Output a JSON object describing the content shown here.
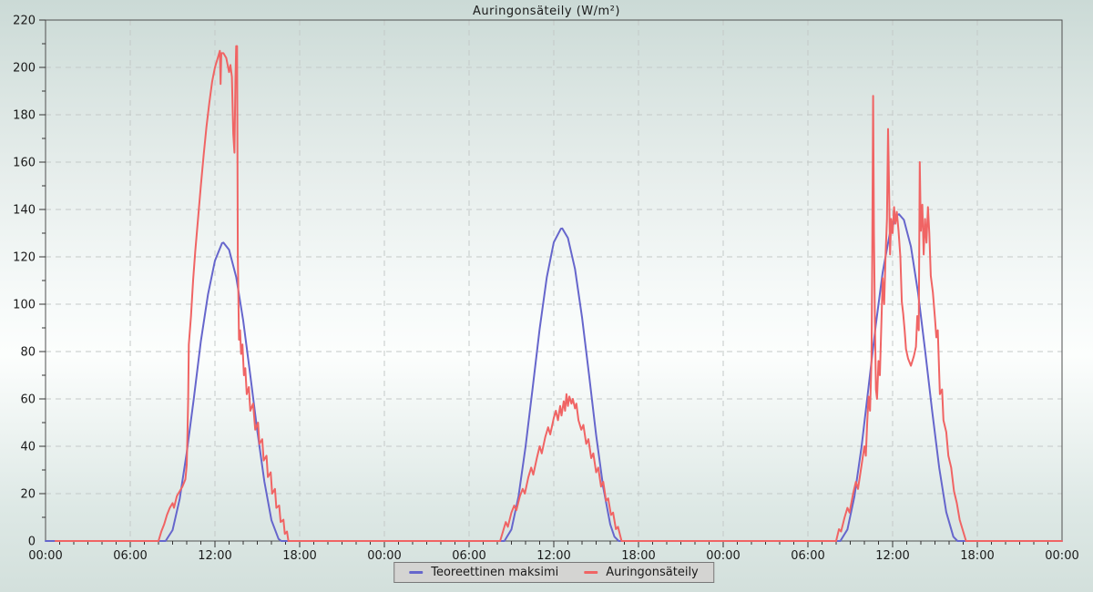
{
  "chart_data": {
    "type": "line",
    "title": "Auringonsäteily (W/m²)",
    "xlabel": "",
    "ylabel": "",
    "x_axis": {
      "unit": "time (hh:mm), 3 consecutive days",
      "min_hour": 0,
      "max_hour": 72,
      "major_tick_every_hours": 6,
      "minor_tick_every_hours": 1,
      "tick_labels": [
        "00:00",
        "06:00",
        "12:00",
        "18:00",
        "00:00",
        "06:00",
        "12:00",
        "18:00",
        "00:00",
        "06:00",
        "12:00",
        "18:00",
        "00:00"
      ]
    },
    "y_axis": {
      "unit": "W/m²",
      "min": 0,
      "max": 220,
      "major_tick_every": 20,
      "minor_tick_every": 10,
      "tick_labels": [
        "0",
        "20",
        "40",
        "60",
        "80",
        "100",
        "120",
        "140",
        "160",
        "180",
        "200",
        "220"
      ]
    },
    "grid": {
      "horizontal_every": 20,
      "vertical_every_hours": 6,
      "style": "dashed",
      "color": "#c4c9c8"
    },
    "legend": {
      "position": "bottom-center",
      "items": [
        {
          "label": "Teoreettinen maksimi",
          "color": "#6666cc"
        },
        {
          "label": "Auringonsäteily",
          "color": "#f06464"
        }
      ]
    },
    "series": [
      {
        "name": "Teoreettinen maksimi",
        "color": "#6666cc",
        "points": [
          [
            0,
            0
          ],
          [
            8.5,
            0
          ],
          [
            9,
            4.6
          ],
          [
            9.5,
            17.8
          ],
          [
            10,
            37.3
          ],
          [
            10.5,
            60.2
          ],
          [
            11,
            84.3
          ],
          [
            11.5,
            104
          ],
          [
            12,
            118.4
          ],
          [
            12.5,
            125.8
          ],
          [
            12.6,
            126
          ],
          [
            13,
            123
          ],
          [
            13.5,
            111.5
          ],
          [
            14,
            93.1
          ],
          [
            14.5,
            70
          ],
          [
            15,
            46.5
          ],
          [
            15.5,
            25
          ],
          [
            16,
            8.8
          ],
          [
            16.5,
            0.9
          ],
          [
            16.7,
            0
          ],
          [
            32.5,
            0
          ],
          [
            33,
            4.9
          ],
          [
            33.5,
            18.9
          ],
          [
            34,
            39.8
          ],
          [
            34.5,
            64.6
          ],
          [
            35,
            89.6
          ],
          [
            35.5,
            111.3
          ],
          [
            36,
            126.1
          ],
          [
            36.5,
            131.9
          ],
          [
            36.6,
            132
          ],
          [
            37,
            128
          ],
          [
            37.5,
            114.9
          ],
          [
            38,
            94.5
          ],
          [
            38.5,
            69.9
          ],
          [
            39,
            44.7
          ],
          [
            39.5,
            22.6
          ],
          [
            40,
            7
          ],
          [
            40.3,
            1.8
          ],
          [
            40.6,
            0
          ],
          [
            56.3,
            0
          ],
          [
            56.8,
            4.9
          ],
          [
            57.3,
            18.9
          ],
          [
            57.8,
            39.8
          ],
          [
            58.3,
            65.1
          ],
          [
            58.8,
            90.8
          ],
          [
            59.3,
            113.5
          ],
          [
            59.8,
            129.8
          ],
          [
            60.3,
            137.5
          ],
          [
            60.45,
            138
          ],
          [
            60.8,
            135.6
          ],
          [
            61.3,
            124.3
          ],
          [
            61.8,
            104.9
          ],
          [
            62.3,
            80.7
          ],
          [
            62.8,
            54.9
          ],
          [
            63.3,
            30.8
          ],
          [
            63.8,
            12.2
          ],
          [
            64.3,
            1.8
          ],
          [
            64.6,
            0
          ],
          [
            72,
            0
          ]
        ]
      },
      {
        "name": "Auringonsäteily",
        "color": "#f06464",
        "points": [
          [
            0.7,
            0
          ],
          [
            8,
            0
          ],
          [
            8.2,
            4
          ],
          [
            8.4,
            7
          ],
          [
            8.6,
            11
          ],
          [
            8.8,
            14
          ],
          [
            9,
            16
          ],
          [
            9.1,
            14
          ],
          [
            9.3,
            19
          ],
          [
            9.5,
            21
          ],
          [
            9.7,
            23
          ],
          [
            9.9,
            26
          ],
          [
            10,
            32
          ],
          [
            10.05,
            45
          ],
          [
            10.1,
            60
          ],
          [
            10.15,
            83
          ],
          [
            10.3,
            95
          ],
          [
            10.45,
            110
          ],
          [
            10.6,
            122
          ],
          [
            10.8,
            136
          ],
          [
            11,
            150
          ],
          [
            11.2,
            163
          ],
          [
            11.4,
            175
          ],
          [
            11.6,
            185
          ],
          [
            11.8,
            194
          ],
          [
            12,
            200
          ],
          [
            12.2,
            204
          ],
          [
            12.35,
            207
          ],
          [
            12.4,
            193
          ],
          [
            12.45,
            206
          ],
          [
            12.6,
            206
          ],
          [
            12.8,
            204
          ],
          [
            13,
            198
          ],
          [
            13.1,
            201
          ],
          [
            13.2,
            196
          ],
          [
            13.3,
            172
          ],
          [
            13.38,
            164
          ],
          [
            13.45,
            195
          ],
          [
            13.5,
            209
          ],
          [
            13.57,
            209
          ],
          [
            13.62,
            120
          ],
          [
            13.7,
            85
          ],
          [
            13.78,
            89
          ],
          [
            13.85,
            79
          ],
          [
            13.95,
            83
          ],
          [
            14.05,
            70
          ],
          [
            14.15,
            73
          ],
          [
            14.25,
            62
          ],
          [
            14.4,
            65
          ],
          [
            14.5,
            55
          ],
          [
            14.7,
            58
          ],
          [
            14.85,
            47
          ],
          [
            15.05,
            50
          ],
          [
            15.15,
            41
          ],
          [
            15.35,
            43
          ],
          [
            15.45,
            34
          ],
          [
            15.65,
            36
          ],
          [
            15.75,
            27
          ],
          [
            15.95,
            29
          ],
          [
            16.05,
            20
          ],
          [
            16.25,
            22
          ],
          [
            16.35,
            14
          ],
          [
            16.55,
            15
          ],
          [
            16.65,
            8
          ],
          [
            16.85,
            9
          ],
          [
            16.95,
            3
          ],
          [
            17.1,
            4
          ],
          [
            17.2,
            0
          ],
          [
            32.2,
            0
          ],
          [
            32.4,
            4
          ],
          [
            32.6,
            8
          ],
          [
            32.75,
            6
          ],
          [
            33,
            12
          ],
          [
            33.2,
            15
          ],
          [
            33.35,
            13
          ],
          [
            33.6,
            19
          ],
          [
            33.8,
            22
          ],
          [
            33.95,
            20
          ],
          [
            34.2,
            27
          ],
          [
            34.4,
            31
          ],
          [
            34.55,
            28
          ],
          [
            34.8,
            35
          ],
          [
            35,
            40
          ],
          [
            35.15,
            37
          ],
          [
            35.4,
            44
          ],
          [
            35.6,
            48
          ],
          [
            35.75,
            45
          ],
          [
            36,
            52
          ],
          [
            36.15,
            55
          ],
          [
            36.3,
            51
          ],
          [
            36.45,
            57
          ],
          [
            36.55,
            53
          ],
          [
            36.7,
            59
          ],
          [
            36.8,
            55
          ],
          [
            36.9,
            62
          ],
          [
            37,
            57
          ],
          [
            37.1,
            61
          ],
          [
            37.25,
            58
          ],
          [
            37.35,
            60
          ],
          [
            37.5,
            56
          ],
          [
            37.6,
            58
          ],
          [
            37.75,
            51
          ],
          [
            37.95,
            47
          ],
          [
            38.1,
            49
          ],
          [
            38.3,
            41
          ],
          [
            38.45,
            43
          ],
          [
            38.65,
            35
          ],
          [
            38.8,
            37
          ],
          [
            39,
            29
          ],
          [
            39.15,
            31
          ],
          [
            39.35,
            23
          ],
          [
            39.5,
            25
          ],
          [
            39.7,
            17
          ],
          [
            39.85,
            18
          ],
          [
            40.05,
            11
          ],
          [
            40.2,
            12
          ],
          [
            40.4,
            5
          ],
          [
            40.55,
            6
          ],
          [
            40.8,
            0
          ],
          [
            56,
            0
          ],
          [
            56.2,
            5
          ],
          [
            56.35,
            4
          ],
          [
            56.6,
            10
          ],
          [
            56.8,
            14
          ],
          [
            56.95,
            12
          ],
          [
            57.2,
            20
          ],
          [
            57.4,
            25
          ],
          [
            57.55,
            22
          ],
          [
            57.8,
            32
          ],
          [
            58,
            40
          ],
          [
            58.1,
            36
          ],
          [
            58.2,
            50
          ],
          [
            58.3,
            61
          ],
          [
            58.4,
            55
          ],
          [
            58.5,
            76
          ],
          [
            58.55,
            112
          ],
          [
            58.62,
            188
          ],
          [
            58.68,
            130
          ],
          [
            58.75,
            92
          ],
          [
            58.82,
            64
          ],
          [
            58.9,
            60
          ],
          [
            59,
            76
          ],
          [
            59.1,
            70
          ],
          [
            59.2,
            91
          ],
          [
            59.3,
            111
          ],
          [
            59.4,
            100
          ],
          [
            59.5,
            121
          ],
          [
            59.6,
            136
          ],
          [
            59.68,
            174
          ],
          [
            59.75,
            149
          ],
          [
            59.82,
            121
          ],
          [
            59.9,
            136
          ],
          [
            60,
            130
          ],
          [
            60.1,
            141
          ],
          [
            60.2,
            134
          ],
          [
            60.3,
            139
          ],
          [
            60.42,
            131
          ],
          [
            60.55,
            120
          ],
          [
            60.65,
            101
          ],
          [
            60.75,
            96
          ],
          [
            60.85,
            89
          ],
          [
            60.95,
            81
          ],
          [
            61.1,
            77
          ],
          [
            61.3,
            74
          ],
          [
            61.5,
            78
          ],
          [
            61.65,
            82
          ],
          [
            61.75,
            95
          ],
          [
            61.85,
            89
          ],
          [
            61.92,
            160
          ],
          [
            62,
            131
          ],
          [
            62.1,
            142
          ],
          [
            62.2,
            121
          ],
          [
            62.3,
            136
          ],
          [
            62.4,
            126
          ],
          [
            62.5,
            141
          ],
          [
            62.6,
            130
          ],
          [
            62.7,
            112
          ],
          [
            62.85,
            105
          ],
          [
            63,
            94
          ],
          [
            63.1,
            86
          ],
          [
            63.2,
            89
          ],
          [
            63.35,
            62
          ],
          [
            63.5,
            64
          ],
          [
            63.6,
            51
          ],
          [
            63.8,
            46
          ],
          [
            63.95,
            36
          ],
          [
            64.15,
            31
          ],
          [
            64.35,
            21
          ],
          [
            64.55,
            16
          ],
          [
            64.75,
            9
          ],
          [
            64.95,
            5
          ],
          [
            65.2,
            0
          ],
          [
            72,
            0
          ]
        ]
      }
    ],
    "plot_style": {
      "border_color": "#4f4f4f",
      "tick_color": "#333333",
      "label_color": "#1a1a1a"
    }
  }
}
